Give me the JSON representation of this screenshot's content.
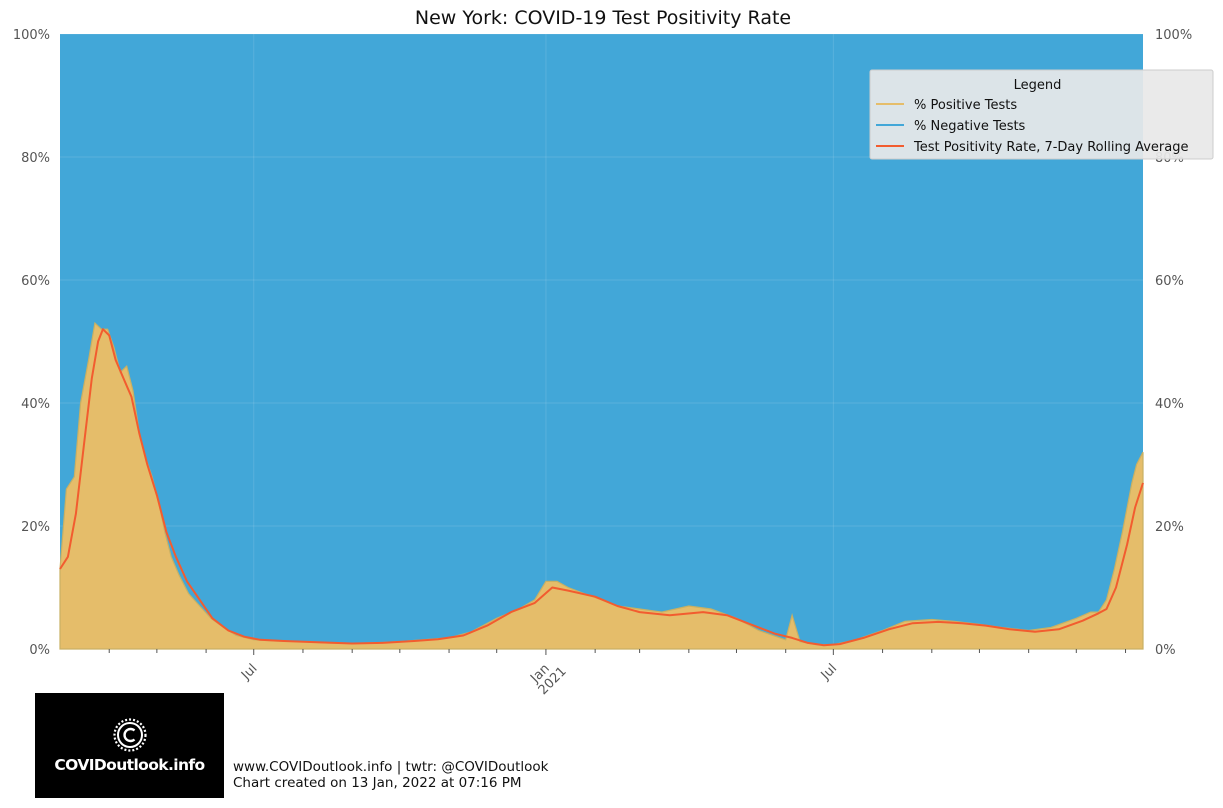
{
  "chart_data": {
    "type": "area",
    "title": "New York: COVID-19 Test Positivity Rate",
    "ylim": [
      0,
      100
    ],
    "y_ticks": [
      0,
      20,
      40,
      60,
      80,
      100
    ],
    "y_tick_labels": [
      "0%",
      "20%",
      "40%",
      "60%",
      "80%",
      "100%"
    ],
    "x_range": [
      "2020-03-01",
      "2022-01-12"
    ],
    "x_tick_labels": [
      {
        "date": "2020-07-01",
        "label": "Jul"
      },
      {
        "date": "2021-01-01",
        "label": "Jan\n2021"
      },
      {
        "date": "2021-07-01",
        "label": "Jul"
      }
    ],
    "x_minor_ticks": [
      "2020-04-01",
      "2020-05-01",
      "2020-06-01",
      "2020-08-01",
      "2020-09-01",
      "2020-10-01",
      "2020-11-01",
      "2020-12-01",
      "2021-02-01",
      "2021-03-01",
      "2021-04-01",
      "2021-05-01",
      "2021-06-01",
      "2021-08-01",
      "2021-09-01",
      "2021-10-01",
      "2021-11-01",
      "2021-12-01",
      "2022-01-01"
    ],
    "grid": true,
    "legend": {
      "title": "Legend",
      "placement": "top-right"
    },
    "series": [
      {
        "name": "% Positive Tests",
        "color": "#e5bd6a",
        "points": [
          [
            "2020-03-01",
            13
          ],
          [
            "2020-03-05",
            26
          ],
          [
            "2020-03-10",
            28
          ],
          [
            "2020-03-14",
            40
          ],
          [
            "2020-03-19",
            47
          ],
          [
            "2020-03-23",
            53
          ],
          [
            "2020-03-27",
            52
          ],
          [
            "2020-03-31",
            52
          ],
          [
            "2020-04-04",
            49
          ],
          [
            "2020-04-08",
            45
          ],
          [
            "2020-04-12",
            46
          ],
          [
            "2020-04-16",
            42
          ],
          [
            "2020-04-20",
            35
          ],
          [
            "2020-04-24",
            31
          ],
          [
            "2020-04-28",
            28
          ],
          [
            "2020-05-02",
            24
          ],
          [
            "2020-05-06",
            19
          ],
          [
            "2020-05-10",
            15
          ],
          [
            "2020-05-15",
            12
          ],
          [
            "2020-05-21",
            9
          ],
          [
            "2020-05-28",
            7
          ],
          [
            "2020-06-04",
            5
          ],
          [
            "2020-06-12",
            3.5
          ],
          [
            "2020-06-20",
            2.2
          ],
          [
            "2020-07-01",
            1.5
          ],
          [
            "2020-07-15",
            1.3
          ],
          [
            "2020-08-01",
            1.2
          ],
          [
            "2020-08-15",
            1.0
          ],
          [
            "2020-09-01",
            0.9
          ],
          [
            "2020-09-15",
            1.0
          ],
          [
            "2020-10-01",
            1.2
          ],
          [
            "2020-10-15",
            1.5
          ],
          [
            "2020-11-01",
            1.8
          ],
          [
            "2020-11-15",
            2.8
          ],
          [
            "2020-12-01",
            5
          ],
          [
            "2020-12-15",
            6.5
          ],
          [
            "2020-12-25",
            8
          ],
          [
            "2021-01-01",
            11
          ],
          [
            "2021-01-08",
            11
          ],
          [
            "2021-01-15",
            10
          ],
          [
            "2021-01-25",
            9
          ],
          [
            "2021-02-05",
            8
          ],
          [
            "2021-02-15",
            7
          ],
          [
            "2021-03-01",
            6.5
          ],
          [
            "2021-03-15",
            6
          ],
          [
            "2021-04-01",
            7
          ],
          [
            "2021-04-15",
            6.5
          ],
          [
            "2021-05-01",
            5
          ],
          [
            "2021-05-15",
            3
          ],
          [
            "2021-06-01",
            1.5
          ],
          [
            "2021-06-05",
            5.5
          ],
          [
            "2021-06-10",
            1.2
          ],
          [
            "2021-06-20",
            0.7
          ],
          [
            "2021-07-01",
            0.7
          ],
          [
            "2021-07-15",
            1.5
          ],
          [
            "2021-08-01",
            3
          ],
          [
            "2021-08-15",
            4.5
          ],
          [
            "2021-09-01",
            4.8
          ],
          [
            "2021-09-15",
            4.5
          ],
          [
            "2021-10-01",
            4
          ],
          [
            "2021-10-15",
            3.5
          ],
          [
            "2021-11-01",
            3
          ],
          [
            "2021-11-15",
            3.5
          ],
          [
            "2021-12-01",
            5
          ],
          [
            "2021-12-10",
            6
          ],
          [
            "2021-12-15",
            6
          ],
          [
            "2021-12-20",
            8
          ],
          [
            "2021-12-25",
            13
          ],
          [
            "2021-12-30",
            19
          ],
          [
            "2022-01-05",
            27
          ],
          [
            "2022-01-08",
            30
          ],
          [
            "2022-01-12",
            32
          ]
        ]
      },
      {
        "name": "% Negative Tests",
        "color": "#42a7d8",
        "note_visual": "fills remainder up to 100%"
      },
      {
        "name": "Test Positivity Rate, 7-Day Rolling Average",
        "color": "#f25c2f",
        "points": [
          [
            "2020-03-01",
            13
          ],
          [
            "2020-03-06",
            15
          ],
          [
            "2020-03-11",
            22
          ],
          [
            "2020-03-16",
            33
          ],
          [
            "2020-03-21",
            44
          ],
          [
            "2020-03-25",
            50
          ],
          [
            "2020-03-28",
            52
          ],
          [
            "2020-04-01",
            51
          ],
          [
            "2020-04-05",
            47
          ],
          [
            "2020-04-10",
            44
          ],
          [
            "2020-04-15",
            41
          ],
          [
            "2020-04-20",
            35
          ],
          [
            "2020-04-25",
            30
          ],
          [
            "2020-05-01",
            25
          ],
          [
            "2020-05-07",
            19
          ],
          [
            "2020-05-13",
            15
          ],
          [
            "2020-05-20",
            11
          ],
          [
            "2020-05-28",
            8
          ],
          [
            "2020-06-05",
            5
          ],
          [
            "2020-06-15",
            3
          ],
          [
            "2020-06-25",
            2
          ],
          [
            "2020-07-05",
            1.5
          ],
          [
            "2020-07-20",
            1.3
          ],
          [
            "2020-08-10",
            1.1
          ],
          [
            "2020-09-01",
            0.9
          ],
          [
            "2020-09-20",
            1.0
          ],
          [
            "2020-10-10",
            1.3
          ],
          [
            "2020-10-25",
            1.6
          ],
          [
            "2020-11-10",
            2.2
          ],
          [
            "2020-11-25",
            3.8
          ],
          [
            "2020-12-10",
            6
          ],
          [
            "2020-12-25",
            7.5
          ],
          [
            "2021-01-05",
            10
          ],
          [
            "2021-01-15",
            9.5
          ],
          [
            "2021-02-01",
            8.5
          ],
          [
            "2021-02-15",
            7
          ],
          [
            "2021-03-01",
            6
          ],
          [
            "2021-03-20",
            5.5
          ],
          [
            "2021-04-10",
            6
          ],
          [
            "2021-04-25",
            5.5
          ],
          [
            "2021-05-10",
            4
          ],
          [
            "2021-05-25",
            2.5
          ],
          [
            "2021-06-05",
            1.8
          ],
          [
            "2021-06-15",
            1
          ],
          [
            "2021-06-25",
            0.6
          ],
          [
            "2021-07-05",
            0.8
          ],
          [
            "2021-07-20",
            1.8
          ],
          [
            "2021-08-05",
            3.2
          ],
          [
            "2021-08-20",
            4.2
          ],
          [
            "2021-09-05",
            4.4
          ],
          [
            "2021-09-20",
            4.2
          ],
          [
            "2021-10-05",
            3.8
          ],
          [
            "2021-10-20",
            3.2
          ],
          [
            "2021-11-05",
            2.8
          ],
          [
            "2021-11-20",
            3.2
          ],
          [
            "2021-12-05",
            4.6
          ],
          [
            "2021-12-15",
            5.8
          ],
          [
            "2021-12-20",
            6.5
          ],
          [
            "2021-12-26",
            10
          ],
          [
            "2022-01-02",
            17
          ],
          [
            "2022-01-07",
            23
          ],
          [
            "2022-01-12",
            27
          ]
        ]
      }
    ]
  },
  "footer": {
    "line1": "www.COVIDoutlook.info | twtr: @COVIDoutlook",
    "line2": "Chart created on 13 Jan, 2022 at 07:16 PM"
  },
  "logo": {
    "text": "COVIDoutlook.info",
    "icon": "virus-c-icon"
  }
}
